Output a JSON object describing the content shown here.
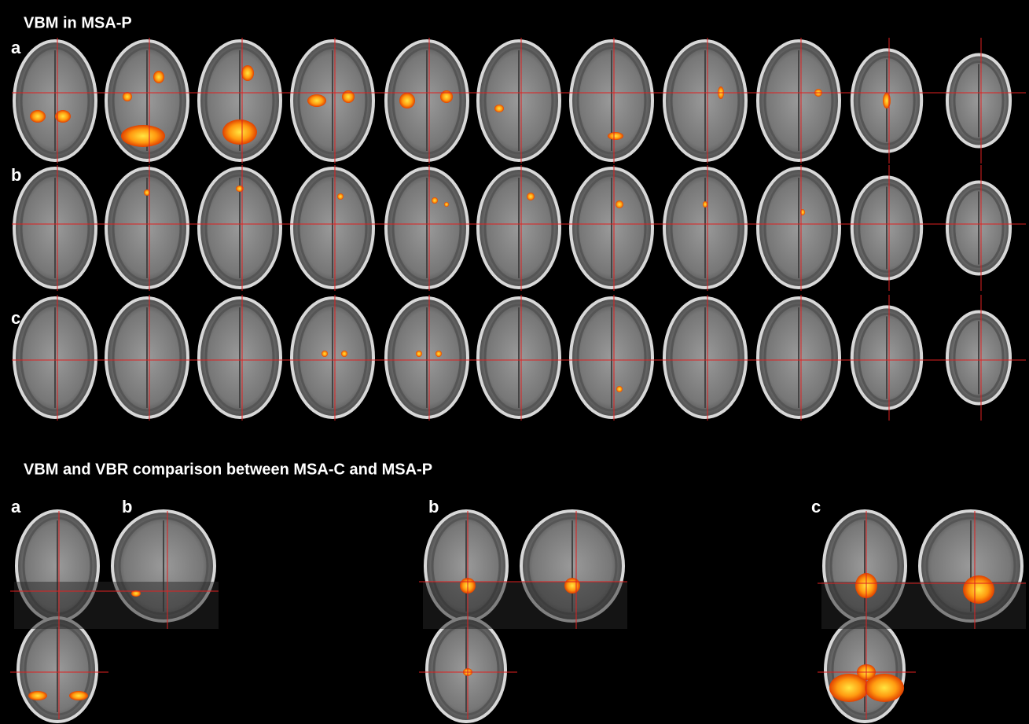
{
  "title": "VBM in MSA-P",
  "rows": [
    {
      "label": "a"
    },
    {
      "label": "b"
    },
    {
      "label": "c"
    }
  ],
  "comparison": {
    "title": "VBM and VBR comparison between MSA-C and MSA-P",
    "panels": [
      {
        "label": "a"
      },
      {
        "label": "b"
      },
      {
        "label": "b"
      },
      {
        "label": "c"
      }
    ]
  }
}
